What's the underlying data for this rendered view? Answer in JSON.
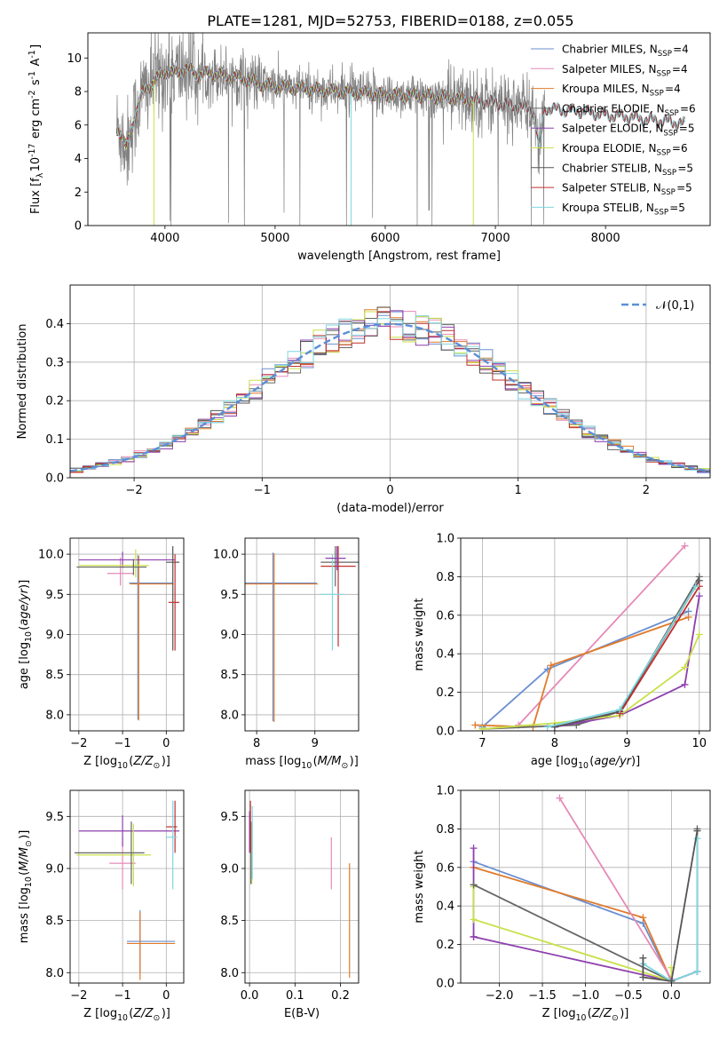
{
  "figure_title": "PLATE=1281, MJD=52753, FIBERID=0188, z=0.055",
  "colors": {
    "chabrier_miles": "#6a8fd0",
    "salpeter_miles": "#e58ab8",
    "kroupa_miles": "#e07b2c",
    "chabrier_elodie": "#666666",
    "salpeter_elodie": "#8e3fae",
    "kroupa_elodie": "#c8e04a",
    "chabrier_stelib": "#555555",
    "salpeter_stelib": "#c03030",
    "kroupa_stelib": "#7fd7e0",
    "data_spectrum": "#808080",
    "normal_curve": "#5b8fd8"
  },
  "chart_data": [
    {
      "id": "spectrum",
      "type": "line",
      "xlabel": "wavelength [Angstrom, rest frame]",
      "ylabel": "Flux [f$_\\lambda$10$^{-17}$ erg cm$^{-2}$ s$^{-1}$ A$^{-1}$]",
      "xlim": [
        3300,
        8950
      ],
      "ylim": [
        0,
        11.5
      ],
      "xticks": [
        4000,
        5000,
        6000,
        7000,
        8000
      ],
      "yticks": [
        0,
        2,
        4,
        6,
        8,
        10
      ],
      "grid": false,
      "legend_position": "top-right",
      "legend": [
        "Chabrier MILES, N$_{SSP}$=4",
        "Salpeter MILES, N$_{SSP}$=4",
        "Kroupa MILES, N$_{SSP}$=4",
        "Chabrier ELODIE, N$_{SSP}$=6",
        "Salpeter ELODIE, N$_{SSP}$=5",
        "Kroupa ELODIE, N$_{SSP}$=6",
        "Chabrier STELIB, N$_{SSP}$=5",
        "Salpeter STELIB, N$_{SSP}$=5",
        "Kroupa STELIB, N$_{SSP}$=5"
      ],
      "continuum_x": [
        3580,
        3650,
        3720,
        3800,
        3900,
        4000,
        4100,
        4200,
        4300,
        4400,
        4500,
        4600,
        4700,
        4800,
        4900,
        5000,
        5200,
        5400,
        5600,
        5800,
        6000,
        6200,
        6400,
        6600,
        6800,
        7000,
        7200,
        7350,
        7400,
        7450,
        7600,
        7800,
        8000,
        8200,
        8400,
        8600,
        8750
      ],
      "continuum_y": [
        5.8,
        4.6,
        6.4,
        8.0,
        8.6,
        9.2,
        9.1,
        9.4,
        9.0,
        9.1,
        9.0,
        8.9,
        8.8,
        8.6,
        8.4,
        8.3,
        8.2,
        8.1,
        8.0,
        7.9,
        7.8,
        7.8,
        7.7,
        7.6,
        7.5,
        7.3,
        7.1,
        6.9,
        4.5,
        7.0,
        6.9,
        6.8,
        6.6,
        6.5,
        6.3,
        6.2,
        6.0
      ],
      "data_xrange": [
        3560,
        7450
      ]
    },
    {
      "id": "residuals",
      "type": "line",
      "xlabel": "(data-model)/error",
      "ylabel": "Normed distribution",
      "xlim": [
        -2.5,
        2.5
      ],
      "ylim": [
        0,
        0.5
      ],
      "xticks": [
        -2,
        -1,
        0,
        1,
        2
      ],
      "yticks": [
        0.0,
        0.1,
        0.2,
        0.3,
        0.4
      ],
      "grid": true,
      "legend_position": "top-right",
      "legend": [
        "$\\mathcal{N}(0,1)$"
      ],
      "bin_width": 0.1
    },
    {
      "id": "age_vs_Z",
      "type": "scatter",
      "xlabel": "Z [log$_{10}$($Z/Z_\\odot$)]",
      "ylabel": "age  [log$_{10}$($age/yr$)]",
      "xlim": [
        -2.2,
        0.4
      ],
      "ylim": [
        7.8,
        10.2
      ],
      "xticks": [
        -2,
        -1,
        0
      ],
      "yticks": [
        8.0,
        8.5,
        9.0,
        9.5,
        10.0
      ],
      "grid": true,
      "series": [
        {
          "color": "chabrier_miles",
          "x": -0.65,
          "xerr": [
            0.2,
            0.8
          ],
          "y": 9.64,
          "yerr": [
            1.7,
            0.35
          ]
        },
        {
          "color": "kroupa_miles",
          "x": -0.63,
          "xerr": [
            0.2,
            0.8
          ],
          "y": 9.63,
          "yerr": [
            1.7,
            0.35
          ]
        },
        {
          "color": "salpeter_miles",
          "x": -1.05,
          "xerr": [
            0.3,
            0.3
          ],
          "y": 9.76,
          "yerr": [
            0.15,
            0.2
          ]
        },
        {
          "color": "salpeter_elodie",
          "x": -1.0,
          "xerr": [
            1.0,
            1.2
          ],
          "y": 9.93,
          "yerr": [
            0.1,
            0.1
          ]
        },
        {
          "color": "kroupa_elodie",
          "x": -0.7,
          "xerr": [
            1.3,
            0.3
          ],
          "y": 9.86,
          "yerr": [
            0.15,
            0.2
          ]
        },
        {
          "color": "chabrier_elodie",
          "x": -0.75,
          "xerr": [
            1.3,
            0.3
          ],
          "y": 9.84,
          "yerr": [
            0.1,
            0.1
          ]
        },
        {
          "color": "chabrier_stelib",
          "x": 0.15,
          "xerr": [
            0.15,
            0.15
          ],
          "y": 9.9,
          "yerr": [
            1.1,
            0.2
          ]
        },
        {
          "color": "salpeter_stelib",
          "x": 0.2,
          "xerr": [
            0.15,
            0.1
          ],
          "y": 9.4,
          "yerr": [
            0.6,
            0.6
          ]
        }
      ]
    },
    {
      "id": "age_vs_mass",
      "type": "scatter",
      "xlabel": "mass [log$_{10}$($M/M_\\odot$)]",
      "ylabel": "",
      "xlim": [
        7.8,
        9.75
      ],
      "ylim": [
        7.8,
        10.2
      ],
      "xticks": [
        8,
        9
      ],
      "yticks": [
        8.0,
        8.5,
        9.0,
        9.5,
        10.0
      ],
      "grid": true,
      "series": [
        {
          "color": "chabrier_miles",
          "x": 8.28,
          "xerr": [
            0.5,
            0.75
          ],
          "y": 9.64,
          "yerr": [
            1.72,
            0.38
          ]
        },
        {
          "color": "kroupa_miles",
          "x": 8.3,
          "xerr": [
            0.5,
            0.75
          ],
          "y": 9.63,
          "yerr": [
            1.72,
            0.38
          ]
        },
        {
          "color": "chabrier_elodie",
          "x": 9.35,
          "xerr": [
            0.25,
            0.4
          ],
          "y": 9.9,
          "yerr": [
            0.3,
            0.2
          ]
        },
        {
          "color": "salpeter_stelib",
          "x": 9.4,
          "xerr": [
            0.3,
            0.3
          ],
          "y": 9.85,
          "yerr": [
            1.0,
            0.25
          ]
        },
        {
          "color": "kroupa_stelib",
          "x": 9.3,
          "xerr": [
            0.2,
            0.2
          ],
          "y": 9.5,
          "yerr": [
            0.7,
            0.5
          ]
        },
        {
          "color": "salpeter_elodie",
          "x": 9.38,
          "xerr": [
            0.2,
            0.15
          ],
          "y": 9.95,
          "yerr": [
            0.15,
            0.15
          ]
        }
      ]
    },
    {
      "id": "massweight_vs_age",
      "type": "line",
      "xlabel": "age  [log$_{10}$($age/yr$)]",
      "ylabel": "mass weight",
      "xlim": [
        6.7,
        10.15
      ],
      "ylim": [
        0,
        1.0
      ],
      "xticks": [
        7,
        8,
        9,
        10
      ],
      "yticks": [
        0.0,
        0.2,
        0.4,
        0.6,
        0.8,
        1.0
      ],
      "grid": true,
      "series": [
        {
          "color": "chabrier_miles",
          "x": [
            7.0,
            7.9,
            9.85
          ],
          "y": [
            0.02,
            0.32,
            0.62
          ]
        },
        {
          "color": "salpeter_miles",
          "x": [
            7.5,
            9.8
          ],
          "y": [
            0.03,
            0.96
          ]
        },
        {
          "color": "kroupa_miles",
          "x": [
            6.9,
            7.7,
            7.95,
            9.85
          ],
          "y": [
            0.03,
            0.02,
            0.34,
            0.59
          ]
        },
        {
          "color": "chabrier_elodie",
          "x": [
            7.0,
            8.3,
            8.9,
            10.0
          ],
          "y": [
            0.01,
            0.03,
            0.1,
            0.8
          ]
        },
        {
          "color": "salpeter_elodie",
          "x": [
            8.0,
            8.9,
            9.8,
            10.0
          ],
          "y": [
            0.02,
            0.08,
            0.24,
            0.7
          ]
        },
        {
          "color": "kroupa_elodie",
          "x": [
            7.0,
            8.0,
            8.9,
            9.8,
            10.0
          ],
          "y": [
            0.01,
            0.04,
            0.08,
            0.33,
            0.5
          ]
        },
        {
          "color": "chabrier_stelib",
          "x": [
            8.0,
            8.9,
            10.0
          ],
          "y": [
            0.02,
            0.1,
            0.78
          ]
        },
        {
          "color": "salpeter_stelib",
          "x": [
            8.9,
            10.0
          ],
          "y": [
            0.09,
            0.75
          ]
        },
        {
          "color": "kroupa_stelib",
          "x": [
            7.9,
            8.9,
            9.95
          ],
          "y": [
            0.02,
            0.11,
            0.75
          ]
        }
      ]
    },
    {
      "id": "mass_vs_Z",
      "type": "scatter",
      "xlabel": "Z [log$_{10}$($Z/Z_\\odot$)]",
      "ylabel": "mass [log$_{10}$($M/M_\\odot$)]",
      "xlim": [
        -2.2,
        0.4
      ],
      "ylim": [
        7.9,
        9.75
      ],
      "xticks": [
        -2,
        -1,
        0
      ],
      "yticks": [
        8.0,
        8.5,
        9.0,
        9.5
      ],
      "grid": true,
      "series": [
        {
          "color": "chabrier_miles",
          "x": -0.6,
          "xerr": [
            0.3,
            0.8
          ],
          "y": 8.3,
          "yerr": [
            0.3,
            0.3
          ]
        },
        {
          "color": "kroupa_miles",
          "x": -0.6,
          "xerr": [
            0.3,
            0.8
          ],
          "y": 8.28,
          "yerr": [
            0.35,
            0.3
          ]
        },
        {
          "color": "salpeter_miles",
          "x": -1.0,
          "xerr": [
            0.3,
            0.3
          ],
          "y": 9.05,
          "yerr": [
            0.25,
            0.25
          ]
        },
        {
          "color": "salpeter_elodie",
          "x": -1.0,
          "xerr": [
            1.0,
            1.3
          ],
          "y": 9.36,
          "yerr": [
            0.15,
            0.15
          ]
        },
        {
          "color": "kroupa_elodie",
          "x": -0.75,
          "xerr": [
            1.3,
            0.4
          ],
          "y": 9.13,
          "yerr": [
            0.3,
            0.3
          ]
        },
        {
          "color": "chabrier_elodie",
          "x": -0.8,
          "xerr": [
            1.3,
            0.3
          ],
          "y": 9.15,
          "yerr": [
            0.3,
            0.3
          ]
        },
        {
          "color": "salpeter_stelib",
          "x": 0.2,
          "xerr": [
            0.2,
            0.05
          ],
          "y": 9.4,
          "yerr": [
            0.25,
            0.25
          ]
        },
        {
          "color": "kroupa_stelib",
          "x": 0.15,
          "xerr": [
            0.15,
            0.1
          ],
          "y": 9.3,
          "yerr": [
            0.5,
            0.35
          ]
        }
      ]
    },
    {
      "id": "mass_vs_EBV",
      "type": "scatter",
      "xlabel": "E(B-V)",
      "ylabel": "",
      "xlim": [
        -0.01,
        0.24
      ],
      "ylim": [
        7.9,
        9.75
      ],
      "xticks": [
        0.0,
        0.1,
        0.2
      ],
      "yticks": [
        8.0,
        8.5,
        9.0,
        9.5
      ],
      "grid": true,
      "series": [
        {
          "color": "kroupa_miles",
          "x": 0.22,
          "y": 8.5,
          "yerr": [
            0.55,
            0.55
          ]
        },
        {
          "color": "salpeter_miles",
          "x": 0.18,
          "y": 9.05,
          "yerr": [
            0.25,
            0.25
          ]
        },
        {
          "color": "salpeter_elodie",
          "x": 0.0,
          "y": 9.35,
          "yerr": [
            0.2,
            0.2
          ]
        },
        {
          "color": "kroupa_elodie",
          "x": 0.005,
          "y": 9.15,
          "yerr": [
            0.3,
            0.3
          ]
        },
        {
          "color": "chabrier_elodie",
          "x": 0.003,
          "y": 9.15,
          "yerr": [
            0.3,
            0.3
          ]
        },
        {
          "color": "kroupa_stelib",
          "x": 0.006,
          "y": 9.3,
          "yerr": [
            0.4,
            0.3
          ]
        },
        {
          "color": "salpeter_stelib",
          "x": 0.002,
          "y": 9.4,
          "yerr": [
            0.25,
            0.25
          ]
        }
      ]
    },
    {
      "id": "massweight_vs_Z",
      "type": "line",
      "xlabel": "Z [log$_{10}$($Z/Z_\\odot$)]",
      "ylabel": "mass weight",
      "xlim": [
        -2.45,
        0.45
      ],
      "ylim": [
        0,
        1.0
      ],
      "xticks": [
        -2.0,
        -1.5,
        -1.0,
        -0.5,
        0.0
      ],
      "yticks": [
        0.0,
        0.2,
        0.4,
        0.6,
        0.8,
        1.0
      ],
      "grid": true,
      "series": [
        {
          "color": "chabrier_miles",
          "x": [
            -2.3,
            -0.33,
            0.0
          ],
          "y": [
            0.63,
            0.31,
            0.01
          ]
        },
        {
          "color": "kroupa_miles",
          "x": [
            -2.3,
            -0.33,
            0.0
          ],
          "y": [
            0.6,
            0.34,
            0.01
          ]
        },
        {
          "color": "salpeter_miles",
          "x": [
            -1.3,
            0.0
          ],
          "y": [
            0.96,
            0.02
          ]
        },
        {
          "color": "salpeter_elodie",
          "x": [
            -2.3,
            -2.3,
            -2.3,
            0.0,
            0.3
          ],
          "y": [
            0.7,
            0.24,
            0.24,
            0.01,
            0.06
          ]
        },
        {
          "color": "kroupa_elodie",
          "x": [
            -2.3,
            -2.3,
            0.0,
            0.0
          ],
          "y": [
            0.5,
            0.33,
            0.01,
            0.08
          ]
        },
        {
          "color": "chabrier_elodie",
          "x": [
            -2.3,
            0.0,
            0.3,
            0.3
          ],
          "y": [
            0.51,
            0.01,
            0.06,
            0.8
          ]
        },
        {
          "color": "kroupa_stelib",
          "x": [
            -0.33,
            0.0,
            0.3,
            0.3
          ],
          "y": [
            0.1,
            0.01,
            0.06,
            0.75
          ]
        },
        {
          "color": "chabrier_stelib",
          "x": [
            -0.33,
            -0.33,
            0.0,
            0.3
          ],
          "y": [
            0.13,
            0.03,
            0.01,
            0.79
          ]
        }
      ]
    }
  ]
}
